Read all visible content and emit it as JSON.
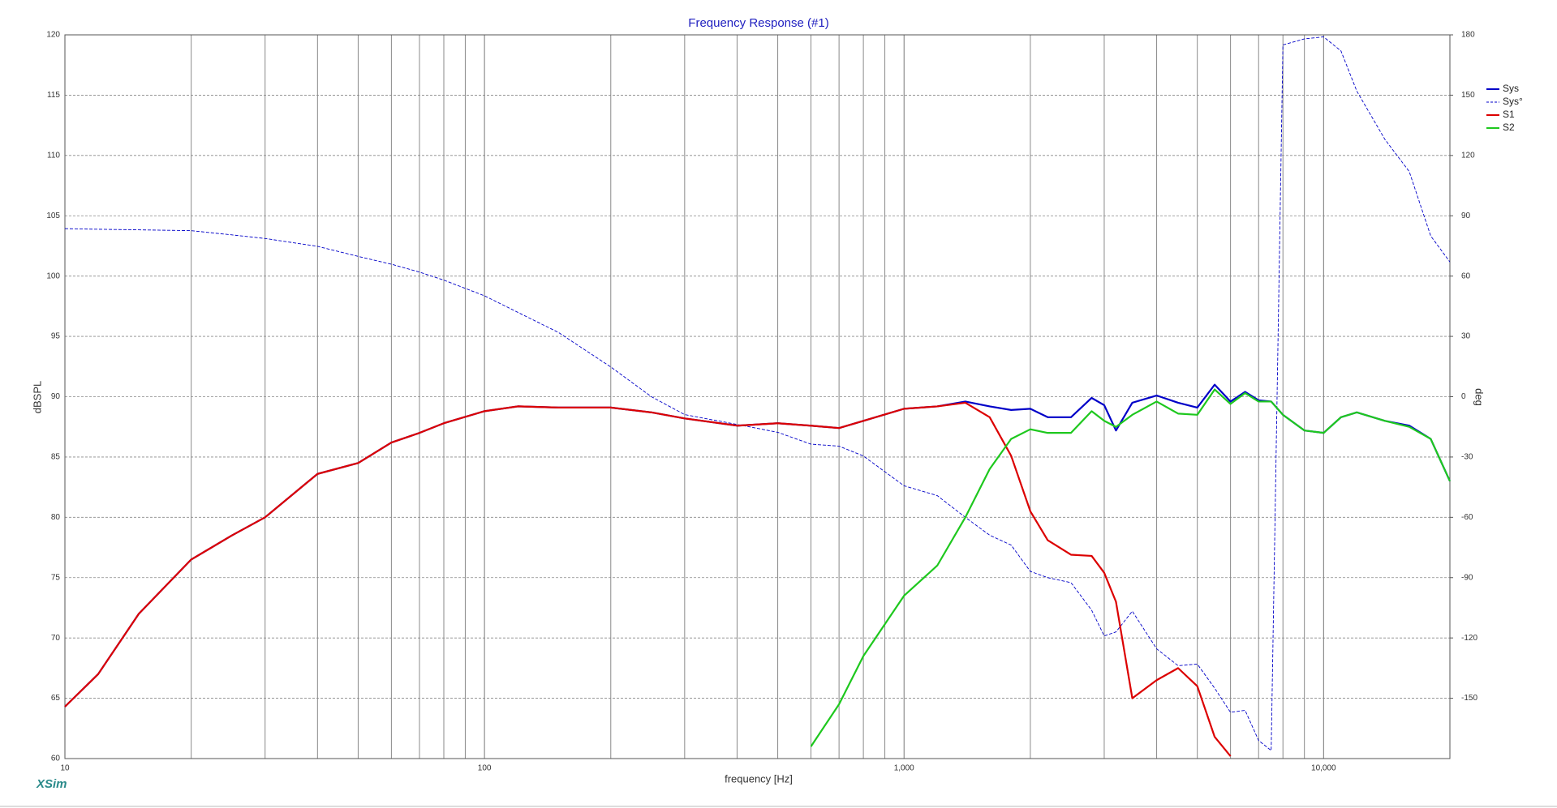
{
  "chart_data": {
    "type": "line",
    "title": "Frequency Response (#1)",
    "x_label": "frequency [Hz]",
    "y_label": "dBSPL",
    "y2_label": "deg",
    "watermark": "XSim",
    "log_x": true,
    "grid": true,
    "legend": "right",
    "xlim": [
      10,
      20000
    ],
    "xticks": [
      10,
      100,
      {
        "value": 1000,
        "label": "1,000"
      },
      {
        "value": 10000,
        "label": "10,000"
      }
    ],
    "x_minor_grid": [
      20,
      30,
      40,
      50,
      60,
      70,
      80,
      90,
      200,
      300,
      400,
      500,
      600,
      700,
      800,
      900,
      2000,
      3000,
      4000,
      5000,
      6000,
      7000,
      8000,
      9000
    ],
    "ylim": [
      60,
      120
    ],
    "yticks": [
      60,
      65,
      70,
      75,
      80,
      85,
      90,
      95,
      100,
      105,
      110,
      115,
      120
    ],
    "y2lim": [
      -180,
      180
    ],
    "y2ticks": [
      -150,
      -120,
      -90,
      -60,
      -30,
      0,
      30,
      60,
      90,
      120,
      150,
      180
    ],
    "x": [
      10,
      12,
      15,
      20,
      25,
      30,
      40,
      50,
      60,
      70,
      80,
      100,
      120,
      150,
      200,
      250,
      300,
      400,
      500,
      600,
      700,
      800,
      1000,
      1200,
      1400,
      1600,
      1800,
      2000,
      2200,
      2500,
      2800,
      3000,
      3200,
      3500,
      4000,
      4500,
      5000,
      5500,
      6000,
      6500,
      7000,
      7500,
      8000,
      9000,
      10000,
      11000,
      12000,
      14000,
      16000,
      18000,
      20000
    ],
    "series": [
      {
        "name": "Sys",
        "color": "#0000c8",
        "width": 2.2,
        "values": [
          64.3,
          67.0,
          72.0,
          76.5,
          78.5,
          80.0,
          83.6,
          84.5,
          86.2,
          87.0,
          87.8,
          88.8,
          89.2,
          89.1,
          89.1,
          88.7,
          88.2,
          87.6,
          87.8,
          87.6,
          87.4,
          88.0,
          89.0,
          89.2,
          89.6,
          89.2,
          88.9,
          89.0,
          88.3,
          88.3,
          89.9,
          89.3,
          87.2,
          89.5,
          90.1,
          89.5,
          89.1,
          91.0,
          89.6,
          90.4,
          89.7,
          89.6,
          88.5,
          87.2,
          87.0,
          88.3,
          88.7,
          88.0,
          87.6,
          86.5,
          83.0
        ]
      },
      {
        "name": "Sys°",
        "color": "#0000c8",
        "dash": true,
        "axis": "y2",
        "width": 0.9,
        "values": [
          83.6,
          83.3,
          83,
          82.6,
          80.5,
          78.7,
          74.8,
          69.8,
          65.9,
          62,
          58,
          50.2,
          42,
          32,
          14.8,
          0,
          -8.9,
          -13.8,
          -17.7,
          -23.6,
          -24.6,
          -29.5,
          -44.3,
          -49.2,
          -60,
          -68.9,
          -73.8,
          -86.9,
          -90,
          -92.5,
          -106.2,
          -119,
          -117,
          -106.7,
          -125.4,
          -133.8,
          -133,
          -145,
          -157,
          -156,
          -171,
          -176,
          175,
          178,
          179,
          172,
          152,
          128,
          112,
          80,
          67
        ]
      },
      {
        "name": "S1",
        "color": "#dc0000",
        "width": 2.2,
        "values": [
          64.3,
          67.0,
          72.0,
          76.5,
          78.5,
          80.0,
          83.6,
          84.5,
          86.2,
          87.0,
          87.8,
          88.8,
          89.2,
          89.1,
          89.1,
          88.7,
          88.2,
          87.6,
          87.8,
          87.6,
          87.4,
          88.0,
          89.0,
          89.2,
          89.5,
          88.3,
          85.1,
          80.5,
          78.1,
          76.9,
          76.8,
          75.4,
          73.0,
          65.0,
          66.5,
          67.5,
          66.0,
          61.8,
          60.2,
          null,
          null,
          null,
          null,
          null,
          null,
          null,
          null,
          null,
          null,
          null,
          null
        ]
      },
      {
        "name": "S2",
        "color": "#1ec81e",
        "width": 2.2,
        "values": [
          null,
          null,
          null,
          null,
          null,
          null,
          null,
          null,
          null,
          null,
          null,
          null,
          null,
          null,
          null,
          null,
          null,
          null,
          null,
          61.0,
          64.5,
          68.5,
          73.5,
          76.0,
          80.0,
          84.0,
          86.5,
          87.3,
          87.0,
          87.0,
          88.8,
          88.0,
          87.5,
          88.5,
          89.6,
          88.6,
          88.5,
          90.6,
          89.4,
          90.3,
          89.6,
          89.6,
          88.5,
          87.2,
          87.0,
          88.3,
          88.7,
          88.0,
          87.5,
          86.5,
          83.0
        ]
      }
    ]
  }
}
